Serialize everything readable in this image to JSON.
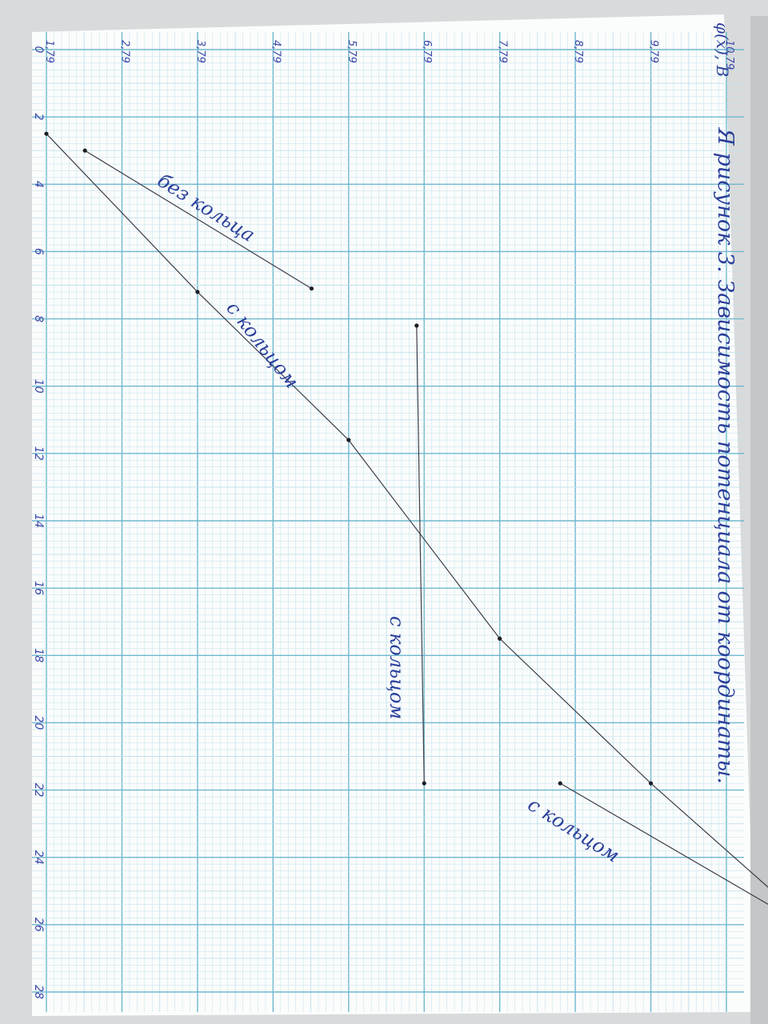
{
  "chart_data": {
    "type": "line",
    "title": "рисунок 3. Зависимость потенциала от координаты.",
    "title_strikeout": "Я",
    "ylabel": "φ(x), В",
    "xlabel": "",
    "x_ticks": [
      "0",
      "2",
      "4",
      "6",
      "8",
      "10",
      "12",
      "14",
      "16",
      "18",
      "20",
      "22",
      "24",
      "26",
      "28"
    ],
    "y_ticks": [
      "1,79",
      "2,79",
      "3,79",
      "4,79",
      "5,79",
      "6,79",
      "7,79",
      "8,79",
      "9,79",
      "10,79"
    ],
    "xlim": [
      0,
      28
    ],
    "ylim": [
      1.79,
      10.79
    ],
    "grid": true,
    "series": [
      {
        "name": "без кольца",
        "points": [
          [
            2.5,
            1.79
          ],
          [
            7.2,
            3.79
          ],
          [
            11.6,
            5.79
          ],
          [
            17.5,
            7.79
          ],
          [
            21.8,
            9.79
          ],
          [
            25.8,
            11.8
          ]
        ]
      },
      {
        "name": "с кольцом",
        "points": [
          [
            3.0,
            2.3
          ],
          [
            7.1,
            5.3
          ]
        ]
      },
      {
        "name": "с кольцом",
        "points": [
          [
            8.2,
            6.69
          ],
          [
            21.8,
            6.79
          ]
        ]
      },
      {
        "name": "с кольцом",
        "points": [
          [
            21.8,
            8.59
          ],
          [
            25.6,
            11.5
          ]
        ]
      }
    ]
  },
  "colors": {
    "paper": "#fbfcfc",
    "grid_minor": "#bfe1ec",
    "grid_major": "#6fb8cf",
    "pencil": "#3c3c48",
    "ink": "#2a3f9a"
  }
}
